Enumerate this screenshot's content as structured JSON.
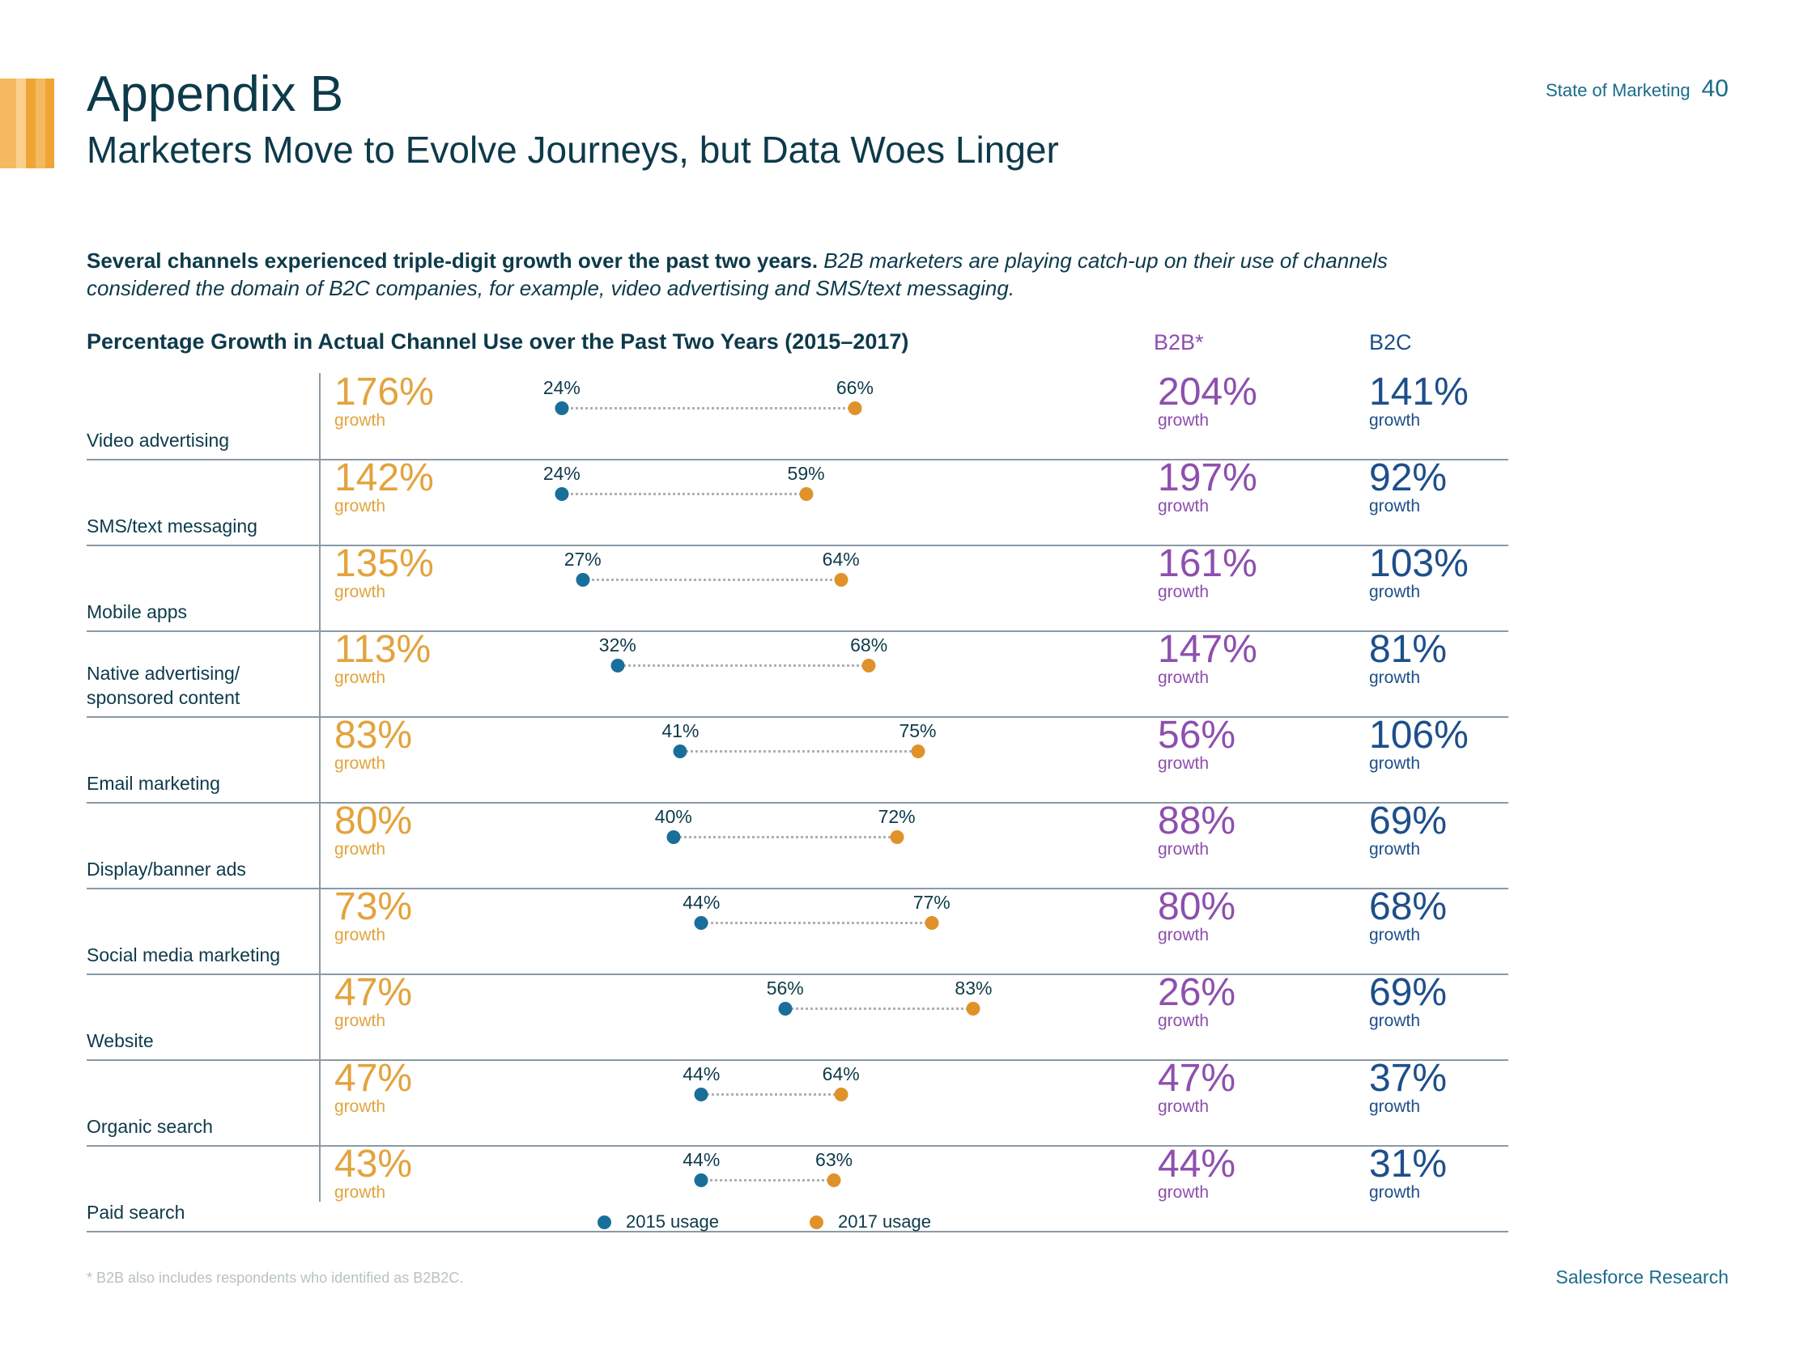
{
  "header": {
    "title": "Appendix B",
    "subtitle": "Marketers Move to Evolve Journeys, but Data Woes Linger",
    "page_label": "State of Marketing",
    "page_number": "40"
  },
  "intro": {
    "bold": "Several channels experienced triple-digit growth over the past two years.",
    "italic": "B2B marketers are playing catch-up on their use of channels considered the domain of B2C companies, for example, video advertising and SMS/text messaging."
  },
  "colors": {
    "orange": "#e3a33c",
    "blue2015": "#1a6e9a",
    "orange2017": "#e0922a",
    "b2b": "#8e4fae",
    "b2c": "#1d4f8a",
    "bars": [
      "#f5b961",
      "#fbd08f",
      "#efa536",
      "#f5b961",
      "#efa536"
    ]
  },
  "chart_data": {
    "type": "dumbbell",
    "title": "Percentage Growth in Actual Channel Use over the Past Two Years (2015–2017)",
    "b2b_header": "B2B*",
    "b2c_header": "B2C",
    "growth_word": "growth",
    "legend": [
      "2015 usage",
      "2017 usage"
    ],
    "rows": [
      {
        "label": "Video advertising",
        "growth": "176%",
        "v2015": 24,
        "v2017": 66,
        "b2b": "204%",
        "b2c": "141%"
      },
      {
        "label": "SMS/text messaging",
        "growth": "142%",
        "v2015": 24,
        "v2017": 59,
        "b2b": "197%",
        "b2c": "92%"
      },
      {
        "label": "Mobile apps",
        "growth": "135%",
        "v2015": 27,
        "v2017": 64,
        "b2b": "161%",
        "b2c": "103%"
      },
      {
        "label": "Native advertising/\nsponsored content",
        "growth": "113%",
        "v2015": 32,
        "v2017": 68,
        "b2b": "147%",
        "b2c": "81%"
      },
      {
        "label": "Email marketing",
        "growth": "83%",
        "v2015": 41,
        "v2017": 75,
        "b2b": "56%",
        "b2c": "106%"
      },
      {
        "label": "Display/banner ads",
        "growth": "80%",
        "v2015": 40,
        "v2017": 72,
        "b2b": "88%",
        "b2c": "69%"
      },
      {
        "label": "Social media marketing",
        "growth": "73%",
        "v2015": 44,
        "v2017": 77,
        "b2b": "80%",
        "b2c": "68%"
      },
      {
        "label": "Website",
        "growth": "47%",
        "v2015": 56,
        "v2017": 83,
        "b2b": "26%",
        "b2c": "69%"
      },
      {
        "label": "Organic search",
        "growth": "47%",
        "v2015": 44,
        "v2017": 64,
        "b2b": "47%",
        "b2c": "37%"
      },
      {
        "label": "Paid search",
        "growth": "43%",
        "v2015": 44,
        "v2017": 63,
        "b2b": "44%",
        "b2c": "31%"
      }
    ]
  },
  "footnote": "* B2B also includes respondents who identified as B2B2C.",
  "footer": "Salesforce Research"
}
